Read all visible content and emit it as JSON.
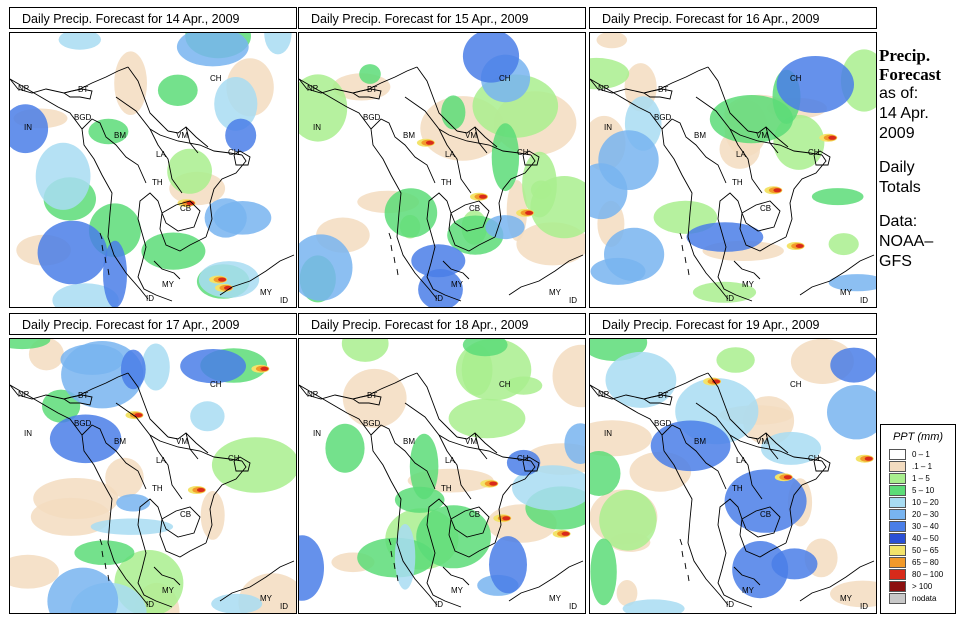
{
  "panels": [
    {
      "title": "Daily Precip. Forecast for  14 Apr., 2009",
      "date": "14 Apr., 2009"
    },
    {
      "title": "Daily Precip. Forecast for  15 Apr., 2009",
      "date": "15 Apr., 2009"
    },
    {
      "title": "Daily Precip. Forecast for  16 Apr., 2009",
      "date": "16 Apr., 2009"
    },
    {
      "title": "Daily Precip. Forecast for  17 Apr., 2009",
      "date": "17 Apr., 2009"
    },
    {
      "title": "Daily Precip. Forecast for  18 Apr., 2009",
      "date": "18 Apr., 2009"
    },
    {
      "title": "Daily Precip. Forecast for  19 Apr., 2009",
      "date": "19 Apr., 2009"
    }
  ],
  "country_labels": [
    "NP",
    "BT",
    "BGD",
    "CH",
    "IN",
    "BM",
    "VM",
    "LA",
    "TH",
    "CB",
    "CH",
    "MY",
    "MY",
    "ID",
    "ID"
  ],
  "side": {
    "title_line1": "Precip.",
    "title_line2": "Forecast",
    "as_of": "as of:",
    "date_line1": "14 Apr.",
    "date_line2": "2009",
    "daily1": "Daily",
    "daily2": "Totals",
    "data1": "Data:",
    "data2": "NOAA–",
    "data3": "GFS"
  },
  "legend": {
    "title": "PPT (mm)",
    "items": [
      {
        "label": "0 – 1",
        "color": "#ffffff"
      },
      {
        "label": ".1 – 1",
        "color": "#f3dcc0"
      },
      {
        "label": "1 – 5",
        "color": "#a9ef8e"
      },
      {
        "label": "5 – 10",
        "color": "#5cdc78"
      },
      {
        "label": "10 – 20",
        "color": "#a8dcf2"
      },
      {
        "label": "20 – 30",
        "color": "#78b4f0"
      },
      {
        "label": "30 – 40",
        "color": "#4a7ee8"
      },
      {
        "label": "40 – 50",
        "color": "#2a4fd6"
      },
      {
        "label": "50 – 65",
        "color": "#f3e36a"
      },
      {
        "label": "65 – 80",
        "color": "#f29a2a"
      },
      {
        "label": "80 – 100",
        "color": "#d82a1a"
      },
      {
        "label": "> 100",
        "color": "#8c1010"
      },
      {
        "label": "nodata",
        "color": "#c8c8c8"
      }
    ]
  },
  "panel_style": {
    "wet_levels": [
      "#f3dcc0",
      "#a9ef8e",
      "#5cdc78",
      "#a8dcf2",
      "#78b4f0",
      "#4a7ee8"
    ],
    "heavy_levels": [
      "#f3e36a",
      "#f29a2a",
      "#d82a1a"
    ]
  }
}
